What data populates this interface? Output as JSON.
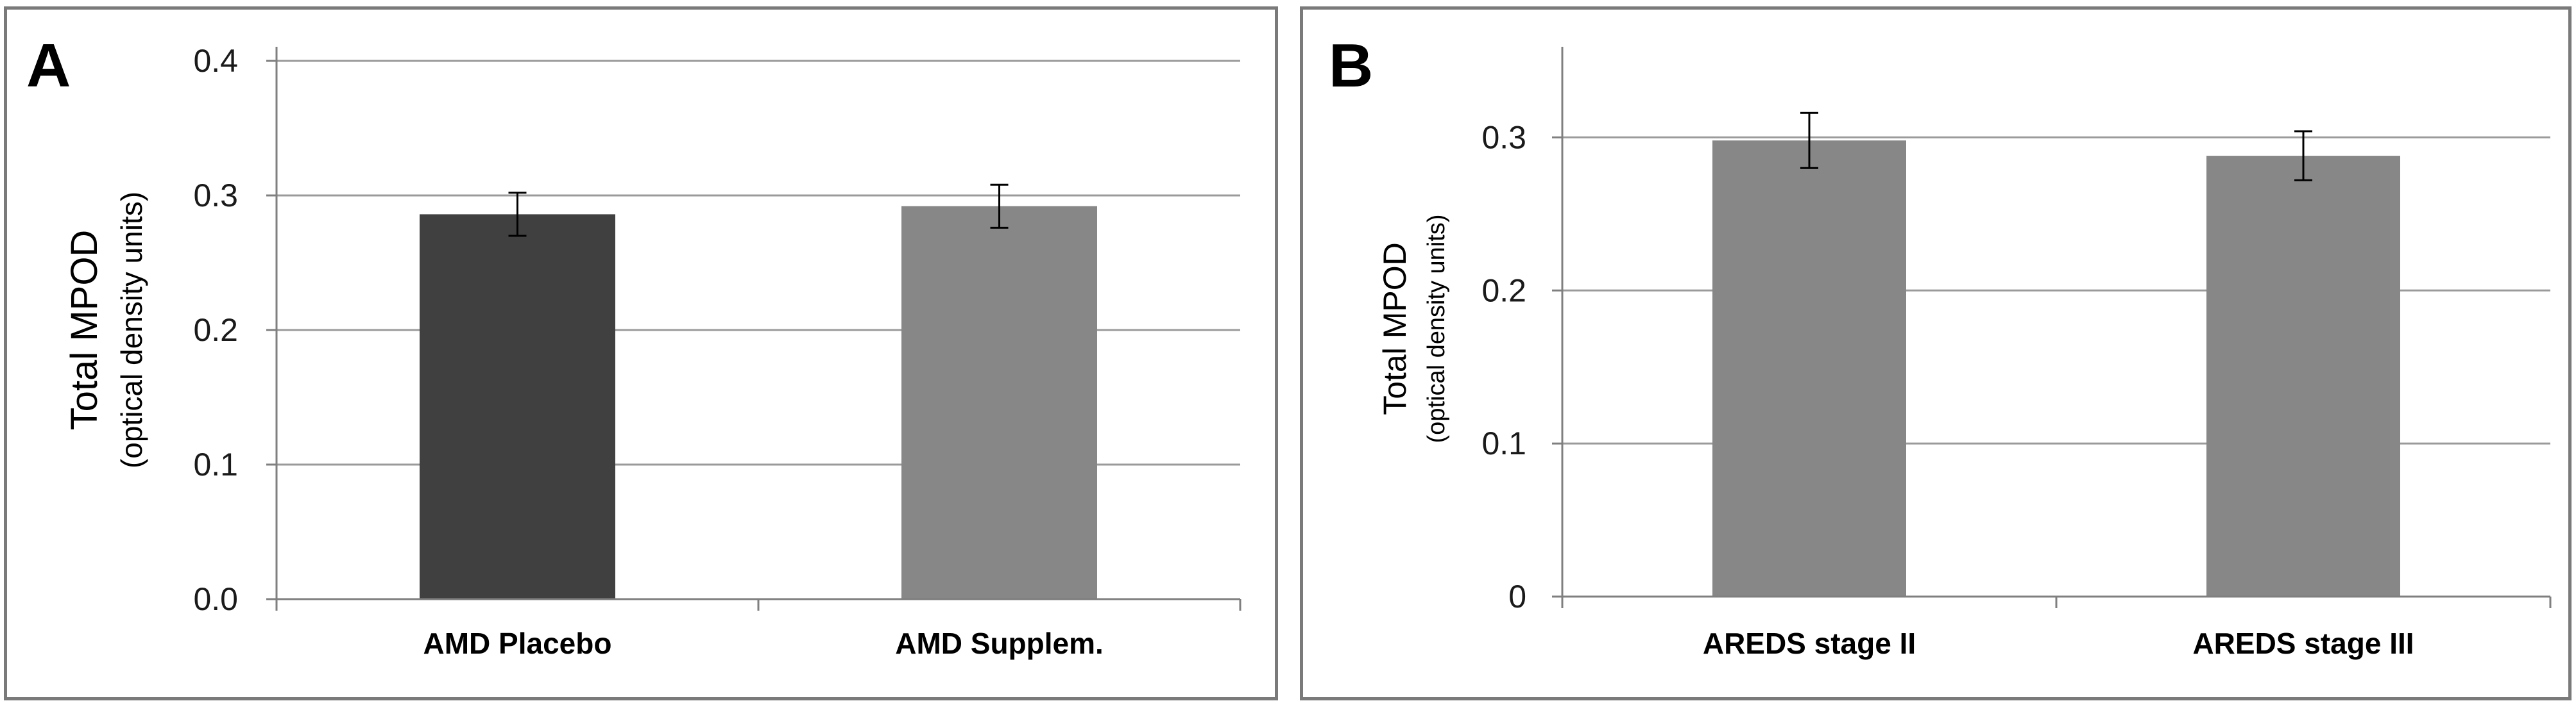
{
  "chart_data": [
    {
      "type": "bar",
      "panel": "A",
      "categories": [
        "AMD Placebo",
        "AMD Supplem."
      ],
      "values": [
        0.286,
        0.292
      ],
      "errors": [
        0.016,
        0.016
      ],
      "bar_colors": [
        "#404040",
        "#878787"
      ],
      "ylim": [
        0.0,
        0.4
      ],
      "yticks": [
        "0.0",
        "0.1",
        "0.2",
        "0.3",
        "0.4"
      ],
      "ytick_values": [
        0.0,
        0.1,
        0.2,
        0.3,
        0.4
      ],
      "ylabel": "Total MPOD",
      "ylabel_sub": "(optical density units)",
      "xlabel": "",
      "grid": true,
      "legend": "none"
    },
    {
      "type": "bar",
      "panel": "B",
      "categories": [
        "AREDS stage II",
        "AREDS stage III"
      ],
      "values": [
        0.298,
        0.288
      ],
      "errors": [
        0.018,
        0.016
      ],
      "bar_colors": [
        "#878787",
        "#878787"
      ],
      "ylim": [
        0.0,
        0.35
      ],
      "yticks": [
        "0",
        "0.1",
        "0.2",
        "0.3"
      ],
      "ytick_values": [
        0.0,
        0.1,
        0.2,
        0.3
      ],
      "ylabel": "Total MPOD",
      "ylabel_sub": "(optical density units)",
      "xlabel": "",
      "grid": true,
      "legend": "none"
    }
  ],
  "colors": {
    "gridline": "#9a9a9a",
    "axis": "#7f7f7f",
    "frame": "#7a7a7a",
    "errorbar": "#000000"
  }
}
